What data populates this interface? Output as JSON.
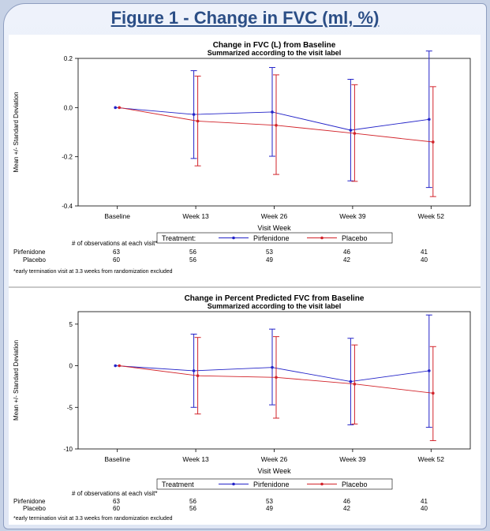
{
  "figure_title": "Figure 1 - Change in FVC (ml, %)",
  "colors": {
    "pirfenidone": "#2323c8",
    "placebo": "#d2232a",
    "title": "#2b4e86"
  },
  "chart_data": [
    {
      "type": "line",
      "title": "Change in FVC (L) from Baseline",
      "subtitle": "Summarized according to the visit label",
      "xlabel": "Visit Week",
      "ylabel": "Mean +/- Standard Deviation",
      "categories": [
        "Baseline",
        "Week 13",
        "Week 26",
        "Week 39",
        "Week 52"
      ],
      "ylim": [
        -0.4,
        0.2
      ],
      "yticks": [
        "0.2",
        "0.0",
        "-0.2",
        "-0.4"
      ],
      "ytick_values": [
        0.2,
        0.0,
        -0.2,
        -0.4
      ],
      "series": [
        {
          "name": "Pirfenidone",
          "values": [
            0.0,
            -0.028,
            -0.018,
            -0.092,
            -0.048
          ],
          "upper": [
            0.0,
            0.15,
            0.163,
            0.115,
            0.23
          ],
          "lower": [
            0.0,
            -0.207,
            -0.198,
            -0.298,
            -0.325
          ]
        },
        {
          "name": "Placebo",
          "values": [
            0.0,
            -0.055,
            -0.072,
            -0.105,
            -0.14
          ],
          "upper": [
            0.0,
            0.128,
            0.133,
            0.093,
            0.085
          ],
          "lower": [
            0.0,
            -0.237,
            -0.272,
            -0.3,
            -0.362
          ]
        }
      ],
      "legend_label": "Treatment:",
      "obs_header": "# of observations at each visit*",
      "obs_rows": [
        {
          "label": "Pirfenidone",
          "counts": [
            "63",
            "56",
            "53",
            "46",
            "41"
          ]
        },
        {
          "label": "Placebo",
          "counts": [
            "60",
            "56",
            "49",
            "42",
            "40"
          ]
        }
      ],
      "footnote": "*early termination visit at 3.3 weeks from randomization excluded",
      "grid": false,
      "legend_position": "bottom"
    },
    {
      "type": "line",
      "title": "Change in Percent Predicted FVC from Baseline",
      "subtitle": "Summarized according to the visit label",
      "xlabel": "Visit Week",
      "ylabel": "Mean +/- Standard Deviation",
      "categories": [
        "Baseline",
        "Week 13",
        "Week 26",
        "Week 39",
        "Week 52"
      ],
      "ylim": [
        -10,
        6.5
      ],
      "yticks": [
        "5",
        "0",
        "-5",
        "-10"
      ],
      "ytick_values": [
        5,
        0,
        -5,
        -10
      ],
      "series": [
        {
          "name": "Pirfenidone",
          "values": [
            0.0,
            -0.6,
            -0.2,
            -1.9,
            -0.6
          ],
          "upper": [
            0.0,
            3.8,
            4.4,
            3.3,
            6.1
          ],
          "lower": [
            0.0,
            -5.0,
            -4.7,
            -7.1,
            -7.4
          ]
        },
        {
          "name": "Placebo",
          "values": [
            0.0,
            -1.2,
            -1.4,
            -2.2,
            -3.3
          ],
          "upper": [
            0.0,
            3.4,
            3.5,
            2.5,
            2.3
          ],
          "lower": [
            0.0,
            -5.8,
            -6.3,
            -7.0,
            -9.0
          ]
        }
      ],
      "legend_label": "Treatment",
      "obs_header": "# of observations at each visit*",
      "obs_rows": [
        {
          "label": "Pirfenidone",
          "counts": [
            "63",
            "56",
            "53",
            "46",
            "41"
          ]
        },
        {
          "label": "Placebo",
          "counts": [
            "60",
            "56",
            "49",
            "42",
            "40"
          ]
        }
      ],
      "footnote": "*early termination visit at 3.3 weeks from randomization excluded",
      "grid": false,
      "legend_position": "bottom"
    }
  ]
}
